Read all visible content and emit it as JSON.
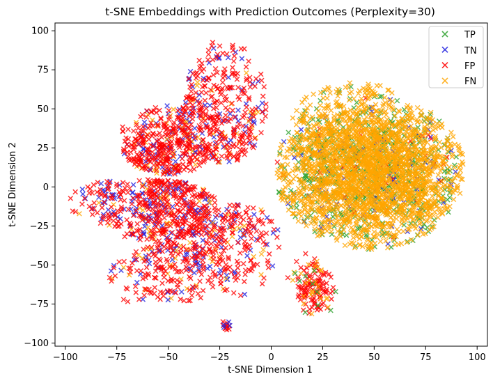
{
  "chart_data": {
    "type": "scatter",
    "title": "t-SNE Embeddings with Prediction Outcomes (Perplexity=30)",
    "xlabel": "t-SNE Dimension 1",
    "ylabel": "t-SNE Dimension 2",
    "xlim": [
      -105,
      105
    ],
    "ylim": [
      -102,
      105
    ],
    "xticks": [
      -100,
      -75,
      -50,
      -25,
      0,
      25,
      50,
      75,
      100
    ],
    "yticks": [
      -100,
      -75,
      -50,
      -25,
      0,
      25,
      50,
      75,
      100
    ],
    "xtick_labels": [
      "−100",
      "−75",
      "−50",
      "−25",
      "0",
      "25",
      "50",
      "75",
      "100"
    ],
    "ytick_labels": [
      "−100",
      "−75",
      "−50",
      "−25",
      "0",
      "25",
      "50",
      "75",
      "100"
    ],
    "grid": false,
    "legend_position": "top-right",
    "marker": "x",
    "series": [
      {
        "name": "TP",
        "color": "#2ca02c"
      },
      {
        "name": "TN",
        "color": "#1f1fdf"
      },
      {
        "name": "FP",
        "color": "#ff0000"
      },
      {
        "name": "FN",
        "color": "#ffa500"
      }
    ],
    "clusters": [
      {
        "series": "TN",
        "region": "left",
        "cx": -45,
        "cy": 5,
        "sx": 30,
        "sy": 48,
        "n": 350
      },
      {
        "series": "FN",
        "region": "left",
        "cx": -45,
        "cy": 5,
        "sx": 30,
        "sy": 48,
        "n": 150
      },
      {
        "series": "FP",
        "region": "left",
        "cx": -45,
        "cy": 5,
        "sx": 30,
        "sy": 48,
        "n": 1300
      },
      {
        "series": "FP",
        "region": "island",
        "cx": -22,
        "cy": -89,
        "sx": 1.2,
        "sy": 2.5,
        "n": 12
      },
      {
        "series": "TN",
        "region": "island",
        "cx": -22,
        "cy": -89,
        "sx": 1.2,
        "sy": 2.5,
        "n": 4
      },
      {
        "series": "TP",
        "region": "right",
        "cx": 48,
        "cy": 10,
        "sx": 25,
        "sy": 26,
        "n": 600
      },
      {
        "series": "TN",
        "region": "right",
        "cx": 48,
        "cy": 10,
        "sx": 25,
        "sy": 26,
        "n": 90
      },
      {
        "series": "FP",
        "region": "right",
        "cx": 48,
        "cy": 10,
        "sx": 25,
        "sy": 26,
        "n": 40
      },
      {
        "series": "FN",
        "region": "right",
        "cx": 48,
        "cy": 10,
        "sx": 25,
        "sy": 26,
        "n": 2400
      },
      {
        "series": "FP",
        "region": "tail",
        "cx": 20,
        "cy": -65,
        "sx": 6,
        "sy": 10,
        "n": 110
      },
      {
        "series": "FN",
        "region": "tail",
        "cx": 20,
        "cy": -65,
        "sx": 6,
        "sy": 10,
        "n": 25
      },
      {
        "series": "TP",
        "region": "tail",
        "cx": 20,
        "cy": -65,
        "sx": 6,
        "sy": 10,
        "n": 10
      }
    ]
  }
}
